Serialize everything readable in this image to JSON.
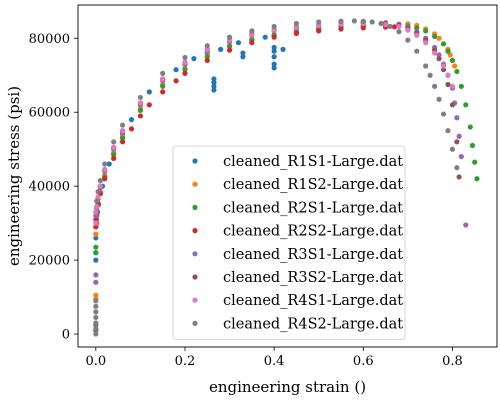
{
  "chart_data": {
    "type": "scatter",
    "title": "",
    "xlabel": "engineering strain ()",
    "ylabel": "engineering stress (psi)",
    "xlim": [
      -0.04,
      0.9
    ],
    "ylim": [
      -3500,
      89000
    ],
    "x_ticks": [
      0.0,
      0.2,
      0.4,
      0.6,
      0.8
    ],
    "y_ticks": [
      0,
      20000,
      40000,
      60000,
      80000
    ],
    "x_tick_labels": [
      "0.0",
      "0.2",
      "0.4",
      "0.6",
      "0.8"
    ],
    "y_tick_labels": [
      "0",
      "20000",
      "40000",
      "60000",
      "80000"
    ],
    "grid": false,
    "legend_position": "lower-center",
    "series": [
      {
        "name": "cleaned_R1S1-Large.dat",
        "color": "#1f77b4",
        "x": [
          0.0,
          0.0,
          0.0,
          0.002,
          0.004,
          0.006,
          0.01,
          0.015,
          0.02,
          0.03,
          0.04,
          0.06,
          0.08,
          0.1,
          0.12,
          0.15,
          0.18,
          0.2,
          0.22,
          0.25,
          0.265,
          0.265,
          0.265,
          0.265,
          0.28,
          0.3,
          0.32,
          0.33,
          0.33,
          0.35,
          0.38,
          0.4,
          0.4,
          0.4,
          0.4,
          0.4,
          0.42,
          0.45,
          0.5,
          0.55,
          0.6,
          0.65
        ],
        "y": [
          20000,
          22000,
          26000,
          30000,
          33000,
          35000,
          38000,
          40000,
          42500,
          46000,
          49000,
          54000,
          58000,
          62000,
          65500,
          69000,
          71500,
          73000,
          74500,
          76000,
          66000,
          67000,
          68000,
          69000,
          77000,
          78000,
          78800,
          75000,
          76000,
          79500,
          80300,
          72000,
          73000,
          75000,
          76500,
          77500,
          77000,
          81500,
          82200,
          82700,
          83100,
          83400
        ]
      },
      {
        "name": "cleaned_R1S2-Large.dat",
        "color": "#ff7f0e",
        "x": [
          0.0,
          0.0,
          0.0,
          0.002,
          0.005,
          0.01,
          0.02,
          0.04,
          0.06,
          0.1,
          0.15,
          0.2,
          0.25,
          0.3,
          0.35,
          0.4,
          0.45,
          0.5,
          0.55,
          0.6,
          0.65,
          0.7,
          0.72,
          0.74,
          0.76,
          0.77,
          0.78,
          0.79,
          0.795,
          0.8,
          0.805
        ],
        "y": [
          9500,
          10500,
          27000,
          31000,
          35000,
          38500,
          43000,
          49000,
          53500,
          61000,
          67500,
          72000,
          75500,
          78000,
          79800,
          81000,
          82000,
          82700,
          83200,
          83500,
          83800,
          83900,
          83500,
          82500,
          81200,
          80000,
          78500,
          77000,
          75500,
          74000,
          72500
        ]
      },
      {
        "name": "cleaned_R2S1-Large.dat",
        "color": "#2ca02c",
        "x": [
          0.0,
          0.0,
          0.0,
          0.002,
          0.005,
          0.01,
          0.02,
          0.04,
          0.06,
          0.1,
          0.15,
          0.2,
          0.25,
          0.3,
          0.35,
          0.4,
          0.45,
          0.5,
          0.55,
          0.6,
          0.65,
          0.7,
          0.72,
          0.74,
          0.76,
          0.78,
          0.79,
          0.8,
          0.81,
          0.82,
          0.83,
          0.84,
          0.845,
          0.85,
          0.855
        ],
        "y": [
          22000,
          23500,
          29000,
          32000,
          35500,
          38000,
          42500,
          48500,
          53000,
          60500,
          67000,
          71500,
          75000,
          77800,
          79500,
          80800,
          81800,
          82500,
          83000,
          83400,
          83600,
          83300,
          82800,
          82000,
          80500,
          78500,
          76500,
          74000,
          71000,
          67000,
          62000,
          56000,
          51000,
          46500,
          42000
        ]
      },
      {
        "name": "cleaned_R2S2-Large.dat",
        "color": "#d62728",
        "x": [
          0.0,
          0.0,
          0.002,
          0.005,
          0.01,
          0.02,
          0.04,
          0.06,
          0.08,
          0.1,
          0.12,
          0.15,
          0.18,
          0.2,
          0.25,
          0.3,
          0.35,
          0.4,
          0.45,
          0.5,
          0.55,
          0.6,
          0.65,
          0.67
        ],
        "y": [
          29000,
          31000,
          32500,
          35000,
          38000,
          42000,
          47500,
          52000,
          55500,
          59000,
          62000,
          65500,
          68500,
          70500,
          74000,
          76800,
          78800,
          80300,
          81300,
          82000,
          82500,
          82800,
          83000,
          83100
        ]
      },
      {
        "name": "cleaned_R3S1-Large.dat",
        "color": "#9467bd",
        "x": [
          0.0,
          0.0,
          0.0,
          0.002,
          0.005,
          0.01,
          0.02,
          0.04,
          0.06,
          0.1,
          0.15,
          0.2,
          0.25,
          0.3,
          0.35,
          0.4,
          0.45,
          0.5,
          0.55,
          0.6,
          0.65,
          0.68,
          0.7,
          0.72,
          0.74,
          0.76,
          0.77,
          0.78,
          0.79,
          0.8,
          0.805,
          0.81,
          0.815,
          0.82,
          0.83
        ],
        "y": [
          14000,
          16000,
          32000,
          34000,
          36500,
          39500,
          44000,
          50000,
          54500,
          62000,
          68500,
          73000,
          76500,
          79000,
          80800,
          82000,
          82800,
          83400,
          83800,
          84100,
          84200,
          83800,
          83000,
          81800,
          80000,
          77500,
          75500,
          73000,
          70000,
          66500,
          62500,
          58500,
          53500,
          48000,
          29500
        ]
      },
      {
        "name": "cleaned_R3S2-Large.dat",
        "color": "#8c564b",
        "x": [
          0.0,
          0.0,
          0.0,
          0.002,
          0.005,
          0.01,
          0.02,
          0.04,
          0.06,
          0.1,
          0.15,
          0.2,
          0.25,
          0.3,
          0.35,
          0.4,
          0.45,
          0.5,
          0.55,
          0.6,
          0.65,
          0.68,
          0.7,
          0.72,
          0.74,
          0.76,
          0.77,
          0.78,
          0.79,
          0.8,
          0.81,
          0.815
        ],
        "y": [
          1000,
          2500,
          33000,
          34500,
          37000,
          40000,
          44500,
          50500,
          55000,
          62500,
          69000,
          73500,
          77000,
          79500,
          81200,
          82300,
          83100,
          83600,
          84000,
          84200,
          84100,
          83600,
          82700,
          81400,
          79500,
          76800,
          74500,
          71500,
          67500,
          62000,
          52000,
          42500
        ]
      },
      {
        "name": "cleaned_R4S1-Large.dat",
        "color": "#e377c2",
        "x": [
          0.0,
          0.0,
          0.002,
          0.005,
          0.01,
          0.02,
          0.04,
          0.06,
          0.1,
          0.15,
          0.2,
          0.25,
          0.3,
          0.35,
          0.4,
          0.45,
          0.5,
          0.55,
          0.6,
          0.65,
          0.68,
          0.7,
          0.72,
          0.74,
          0.76,
          0.78,
          0.79,
          0.8
        ],
        "y": [
          30000,
          33000,
          34500,
          37000,
          40000,
          44500,
          50500,
          55000,
          62500,
          69000,
          73500,
          77000,
          79500,
          81000,
          82200,
          83000,
          83500,
          83900,
          84000,
          83700,
          83200,
          82200,
          80800,
          78800,
          76000,
          72500,
          70000,
          67000
        ]
      },
      {
        "name": "cleaned_R4S2-Large.dat",
        "color": "#7f7f7f",
        "x": [
          0.0,
          0.0,
          0.0,
          0.0,
          0.0,
          0.0,
          0.0,
          0.002,
          0.005,
          0.01,
          0.02,
          0.04,
          0.06,
          0.1,
          0.15,
          0.2,
          0.25,
          0.3,
          0.35,
          0.4,
          0.45,
          0.5,
          0.55,
          0.58,
          0.6,
          0.62,
          0.64,
          0.66,
          0.68,
          0.7,
          0.72,
          0.74,
          0.75,
          0.76,
          0.77,
          0.78,
          0.79,
          0.8,
          0.81
        ],
        "y": [
          0,
          1500,
          3000,
          4500,
          6000,
          7500,
          9000,
          36000,
          38500,
          41500,
          46000,
          52000,
          56500,
          64000,
          70500,
          74800,
          78000,
          80300,
          82000,
          83200,
          84000,
          84400,
          84600,
          84700,
          84600,
          84400,
          84000,
          83200,
          81800,
          79500,
          76500,
          72500,
          70000,
          67000,
          63500,
          59500,
          55000,
          50000,
          45000
        ]
      }
    ]
  }
}
